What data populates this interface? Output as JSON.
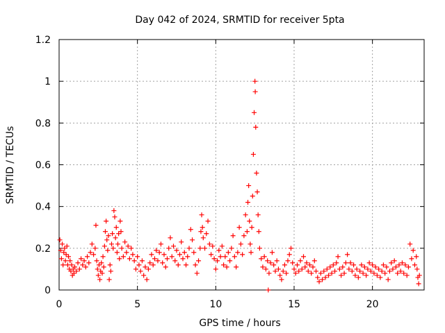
{
  "chart_data": {
    "type": "scatter",
    "title": "Day 042 of 2024, SRMTID for receiver 5pta",
    "xlabel": "GPS time / hours",
    "ylabel": "SRMTID / TECUs",
    "xlim": [
      0,
      23.3
    ],
    "ylim": [
      0,
      1.2
    ],
    "x_ticks": [
      0,
      5,
      10,
      15,
      20
    ],
    "x_tick_labels": [
      "0",
      "5",
      "10",
      "15",
      "20"
    ],
    "y_ticks": [
      0,
      0.2,
      0.4,
      0.6,
      0.8,
      1.0,
      1.2
    ],
    "y_tick_labels": [
      "0",
      "0.2",
      "0.4",
      "0.6",
      "0.8",
      "1",
      "1.2"
    ],
    "grid": true,
    "legend": "none",
    "series": [
      {
        "name": "5pta",
        "color": "#ff0000",
        "marker": "plus",
        "points": [
          [
            0.05,
            0.24
          ],
          [
            0.1,
            0.19
          ],
          [
            0.15,
            0.15
          ],
          [
            0.2,
            0.22
          ],
          [
            0.25,
            0.12
          ],
          [
            0.3,
            0.18
          ],
          [
            0.35,
            0.2
          ],
          [
            0.4,
            0.14
          ],
          [
            0.45,
            0.17
          ],
          [
            0.5,
            0.21
          ],
          [
            0.55,
            0.12
          ],
          [
            0.6,
            0.16
          ],
          [
            0.65,
            0.1
          ],
          [
            0.7,
            0.14
          ],
          [
            0.75,
            0.09
          ],
          [
            0.8,
            0.12
          ],
          [
            0.85,
            0.07
          ],
          [
            0.9,
            0.1
          ],
          [
            0.95,
            0.08
          ],
          [
            1.0,
            0.11
          ],
          [
            1.1,
            0.09
          ],
          [
            1.2,
            0.13
          ],
          [
            1.3,
            0.1
          ],
          [
            1.4,
            0.15
          ],
          [
            1.5,
            0.12
          ],
          [
            1.6,
            0.14
          ],
          [
            1.7,
            0.11
          ],
          [
            1.8,
            0.16
          ],
          [
            1.9,
            0.13
          ],
          [
            2.0,
            0.18
          ],
          [
            2.1,
            0.22
          ],
          [
            2.2,
            0.17
          ],
          [
            2.3,
            0.2
          ],
          [
            2.35,
            0.31
          ],
          [
            2.4,
            0.14
          ],
          [
            2.45,
            0.1
          ],
          [
            2.5,
            0.07
          ],
          [
            2.55,
            0.12
          ],
          [
            2.6,
            0.05
          ],
          [
            2.65,
            0.09
          ],
          [
            2.7,
            0.13
          ],
          [
            2.75,
            0.08
          ],
          [
            2.8,
            0.16
          ],
          [
            2.85,
            0.11
          ],
          [
            2.9,
            0.21
          ],
          [
            2.95,
            0.28
          ],
          [
            3.0,
            0.33
          ],
          [
            3.05,
            0.24
          ],
          [
            3.1,
            0.19
          ],
          [
            3.15,
            0.26
          ],
          [
            3.2,
            0.05
          ],
          [
            3.25,
            0.12
          ],
          [
            3.3,
            0.09
          ],
          [
            3.35,
            0.22
          ],
          [
            3.4,
            0.27
          ],
          [
            3.45,
            0.2
          ],
          [
            3.5,
            0.38
          ],
          [
            3.55,
            0.35
          ],
          [
            3.6,
            0.25
          ],
          [
            3.65,
            0.3
          ],
          [
            3.7,
            0.18
          ],
          [
            3.75,
            0.22
          ],
          [
            3.8,
            0.27
          ],
          [
            3.85,
            0.15
          ],
          [
            3.9,
            0.33
          ],
          [
            3.95,
            0.28
          ],
          [
            4.0,
            0.2
          ],
          [
            4.1,
            0.16
          ],
          [
            4.2,
            0.23
          ],
          [
            4.3,
            0.18
          ],
          [
            4.4,
            0.21
          ],
          [
            4.5,
            0.15
          ],
          [
            4.6,
            0.2
          ],
          [
            4.7,
            0.17
          ],
          [
            4.8,
            0.14
          ],
          [
            4.9,
            0.1
          ],
          [
            5.0,
            0.16
          ],
          [
            5.1,
            0.12
          ],
          [
            5.2,
            0.09
          ],
          [
            5.3,
            0.14
          ],
          [
            5.4,
            0.07
          ],
          [
            5.5,
            0.11
          ],
          [
            5.6,
            0.05
          ],
          [
            5.7,
            0.1
          ],
          [
            5.8,
            0.13
          ],
          [
            5.9,
            0.17
          ],
          [
            6.0,
            0.12
          ],
          [
            6.1,
            0.15
          ],
          [
            6.2,
            0.19
          ],
          [
            6.3,
            0.14
          ],
          [
            6.4,
            0.18
          ],
          [
            6.5,
            0.22
          ],
          [
            6.6,
            0.13
          ],
          [
            6.7,
            0.17
          ],
          [
            6.8,
            0.11
          ],
          [
            6.9,
            0.15
          ],
          [
            7.0,
            0.2
          ],
          [
            7.1,
            0.25
          ],
          [
            7.2,
            0.16
          ],
          [
            7.3,
            0.21
          ],
          [
            7.4,
            0.14
          ],
          [
            7.5,
            0.19
          ],
          [
            7.6,
            0.12
          ],
          [
            7.7,
            0.17
          ],
          [
            7.8,
            0.23
          ],
          [
            7.9,
            0.15
          ],
          [
            8.0,
            0.18
          ],
          [
            8.1,
            0.12
          ],
          [
            8.2,
            0.16
          ],
          [
            8.3,
            0.2
          ],
          [
            8.4,
            0.29
          ],
          [
            8.5,
            0.24
          ],
          [
            8.6,
            0.18
          ],
          [
            8.7,
            0.12
          ],
          [
            8.8,
            0.08
          ],
          [
            8.9,
            0.14
          ],
          [
            9.0,
            0.2
          ],
          [
            9.05,
            0.28
          ],
          [
            9.1,
            0.36
          ],
          [
            9.15,
            0.3
          ],
          [
            9.2,
            0.25
          ],
          [
            9.3,
            0.2
          ],
          [
            9.4,
            0.27
          ],
          [
            9.5,
            0.33
          ],
          [
            9.6,
            0.22
          ],
          [
            9.7,
            0.17
          ],
          [
            9.8,
            0.21
          ],
          [
            9.9,
            0.15
          ],
          [
            10.0,
            0.1
          ],
          [
            10.1,
            0.14
          ],
          [
            10.2,
            0.19
          ],
          [
            10.3,
            0.16
          ],
          [
            10.4,
            0.21
          ],
          [
            10.5,
            0.12
          ],
          [
            10.6,
            0.16
          ],
          [
            10.7,
            0.11
          ],
          [
            10.8,
            0.18
          ],
          [
            10.9,
            0.14
          ],
          [
            11.0,
            0.2
          ],
          [
            11.1,
            0.26
          ],
          [
            11.2,
            0.16
          ],
          [
            11.3,
            0.11
          ],
          [
            11.4,
            0.18
          ],
          [
            11.5,
            0.3
          ],
          [
            11.6,
            0.22
          ],
          [
            11.7,
            0.17
          ],
          [
            11.8,
            0.26
          ],
          [
            11.9,
            0.36
          ],
          [
            12.0,
            0.28
          ],
          [
            12.05,
            0.42
          ],
          [
            12.1,
            0.5
          ],
          [
            12.15,
            0.33
          ],
          [
            12.2,
            0.22
          ],
          [
            12.25,
            0.18
          ],
          [
            12.3,
            0.3
          ],
          [
            12.35,
            0.45
          ],
          [
            12.4,
            0.65
          ],
          [
            12.45,
            0.85
          ],
          [
            12.5,
            1.0
          ],
          [
            12.52,
            0.95
          ],
          [
            12.55,
            0.78
          ],
          [
            12.6,
            0.56
          ],
          [
            12.65,
            0.47
          ],
          [
            12.7,
            0.36
          ],
          [
            12.75,
            0.28
          ],
          [
            12.8,
            0.2
          ],
          [
            12.9,
            0.15
          ],
          [
            13.0,
            0.11
          ],
          [
            13.1,
            0.16
          ],
          [
            13.2,
            0.1
          ],
          [
            13.3,
            0.14
          ],
          [
            13.35,
            0.0
          ],
          [
            13.4,
            0.08
          ],
          [
            13.5,
            0.13
          ],
          [
            13.6,
            0.18
          ],
          [
            13.7,
            0.12
          ],
          [
            13.8,
            0.09
          ],
          [
            13.9,
            0.14
          ],
          [
            14.0,
            0.1
          ],
          [
            14.1,
            0.07
          ],
          [
            14.2,
            0.05
          ],
          [
            14.3,
            0.09
          ],
          [
            14.4,
            0.12
          ],
          [
            14.5,
            0.08
          ],
          [
            14.6,
            0.14
          ],
          [
            14.7,
            0.17
          ],
          [
            14.8,
            0.2
          ],
          [
            14.9,
            0.13
          ],
          [
            15.0,
            0.1
          ],
          [
            15.1,
            0.08
          ],
          [
            15.2,
            0.12
          ],
          [
            15.3,
            0.09
          ],
          [
            15.4,
            0.14
          ],
          [
            15.5,
            0.1
          ],
          [
            15.6,
            0.16
          ],
          [
            15.7,
            0.11
          ],
          [
            15.8,
            0.13
          ],
          [
            15.9,
            0.09
          ],
          [
            16.0,
            0.12
          ],
          [
            16.1,
            0.08
          ],
          [
            16.2,
            0.11
          ],
          [
            16.3,
            0.14
          ],
          [
            16.4,
            0.09
          ],
          [
            16.5,
            0.06
          ],
          [
            16.6,
            0.04
          ],
          [
            16.7,
            0.08
          ],
          [
            16.8,
            0.05
          ],
          [
            16.9,
            0.09
          ],
          [
            17.0,
            0.06
          ],
          [
            17.1,
            0.1
          ],
          [
            17.2,
            0.07
          ],
          [
            17.3,
            0.11
          ],
          [
            17.4,
            0.08
          ],
          [
            17.5,
            0.12
          ],
          [
            17.6,
            0.09
          ],
          [
            17.7,
            0.13
          ],
          [
            17.8,
            0.16
          ],
          [
            17.9,
            0.1
          ],
          [
            18.0,
            0.07
          ],
          [
            18.1,
            0.11
          ],
          [
            18.2,
            0.08
          ],
          [
            18.3,
            0.13
          ],
          [
            18.4,
            0.17
          ],
          [
            18.5,
            0.1
          ],
          [
            18.6,
            0.13
          ],
          [
            18.7,
            0.09
          ],
          [
            18.8,
            0.12
          ],
          [
            18.9,
            0.07
          ],
          [
            19.0,
            0.1
          ],
          [
            19.1,
            0.06
          ],
          [
            19.2,
            0.09
          ],
          [
            19.3,
            0.12
          ],
          [
            19.4,
            0.08
          ],
          [
            19.5,
            0.11
          ],
          [
            19.6,
            0.07
          ],
          [
            19.7,
            0.1
          ],
          [
            19.8,
            0.13
          ],
          [
            19.9,
            0.09
          ],
          [
            20.0,
            0.12
          ],
          [
            20.1,
            0.08
          ],
          [
            20.2,
            0.11
          ],
          [
            20.3,
            0.07
          ],
          [
            20.4,
            0.1
          ],
          [
            20.5,
            0.06
          ],
          [
            20.6,
            0.09
          ],
          [
            20.7,
            0.12
          ],
          [
            20.8,
            0.08
          ],
          [
            20.9,
            0.11
          ],
          [
            21.0,
            0.05
          ],
          [
            21.1,
            0.09
          ],
          [
            21.2,
            0.13
          ],
          [
            21.3,
            0.1
          ],
          [
            21.4,
            0.14
          ],
          [
            21.5,
            0.11
          ],
          [
            21.6,
            0.08
          ],
          [
            21.7,
            0.12
          ],
          [
            21.8,
            0.09
          ],
          [
            21.9,
            0.13
          ],
          [
            22.0,
            0.08
          ],
          [
            22.1,
            0.12
          ],
          [
            22.2,
            0.07
          ],
          [
            22.3,
            0.11
          ],
          [
            22.4,
            0.22
          ],
          [
            22.5,
            0.15
          ],
          [
            22.6,
            0.19
          ],
          [
            22.7,
            0.12
          ],
          [
            22.8,
            0.16
          ],
          [
            22.85,
            0.1
          ],
          [
            22.9,
            0.06
          ],
          [
            22.95,
            0.03
          ],
          [
            23.0,
            0.07
          ]
        ]
      }
    ]
  }
}
